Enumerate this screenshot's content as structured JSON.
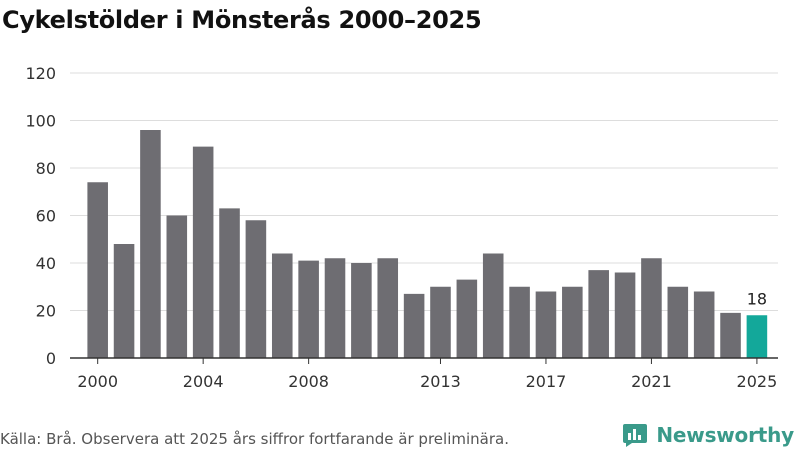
{
  "chart_data": {
    "type": "bar",
    "title": "Cykelstölder i Mönsterås 2000–2025",
    "xlabel": "",
    "ylabel": "",
    "x": [
      2000,
      2001,
      2002,
      2003,
      2004,
      2005,
      2006,
      2007,
      2008,
      2009,
      2010,
      2011,
      2012,
      2013,
      2014,
      2015,
      2016,
      2017,
      2018,
      2019,
      2020,
      2021,
      2022,
      2023,
      2024,
      2025
    ],
    "values": [
      74,
      48,
      96,
      60,
      89,
      63,
      58,
      44,
      41,
      42,
      40,
      42,
      27,
      30,
      33,
      44,
      30,
      28,
      30,
      37,
      36,
      42,
      30,
      28,
      19,
      18
    ],
    "ylim": [
      0,
      120
    ],
    "y_ticks": [
      0,
      20,
      40,
      60,
      80,
      100,
      120
    ],
    "x_tick_labels": [
      "2000",
      "2004",
      "2008",
      "2013",
      "2017",
      "2021",
      "2025"
    ],
    "grid": true,
    "highlight": {
      "index": 25,
      "label": "18"
    },
    "colors": {
      "bar": "#6e6d72",
      "highlight": "#13a89a",
      "grid": "#dddddd",
      "axis": "#333333"
    }
  },
  "footer": {
    "source_note": "Källa: Brå. Observera att 2025 års siffror fortfarande är preliminära."
  },
  "brand": {
    "name": "Newsworthy",
    "color": "#3a9a8a"
  }
}
